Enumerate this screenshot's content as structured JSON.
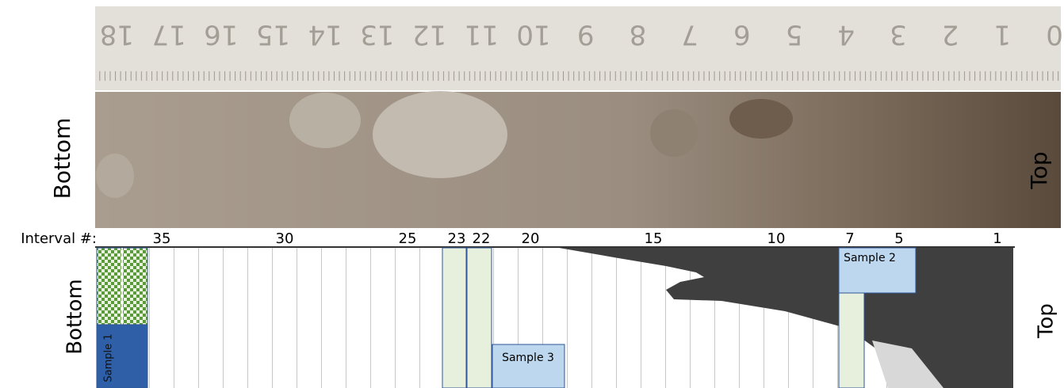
{
  "photo": {
    "left_label": "Bottom",
    "right_label": "Top",
    "ruler_labels": [
      0,
      1,
      2,
      3,
      4,
      5,
      6,
      7,
      8,
      9,
      10,
      11,
      12,
      13,
      14,
      15,
      16,
      17,
      18
    ]
  },
  "diagram": {
    "interval_heading": "Interval #:",
    "interval_labels": [
      35,
      30,
      25,
      23,
      22,
      20,
      15,
      10,
      7,
      5,
      1
    ],
    "left_label": "Bottom",
    "right_label": "Top",
    "samples": [
      "Sample 1",
      "Sample 2",
      "Sample 3"
    ]
  }
}
